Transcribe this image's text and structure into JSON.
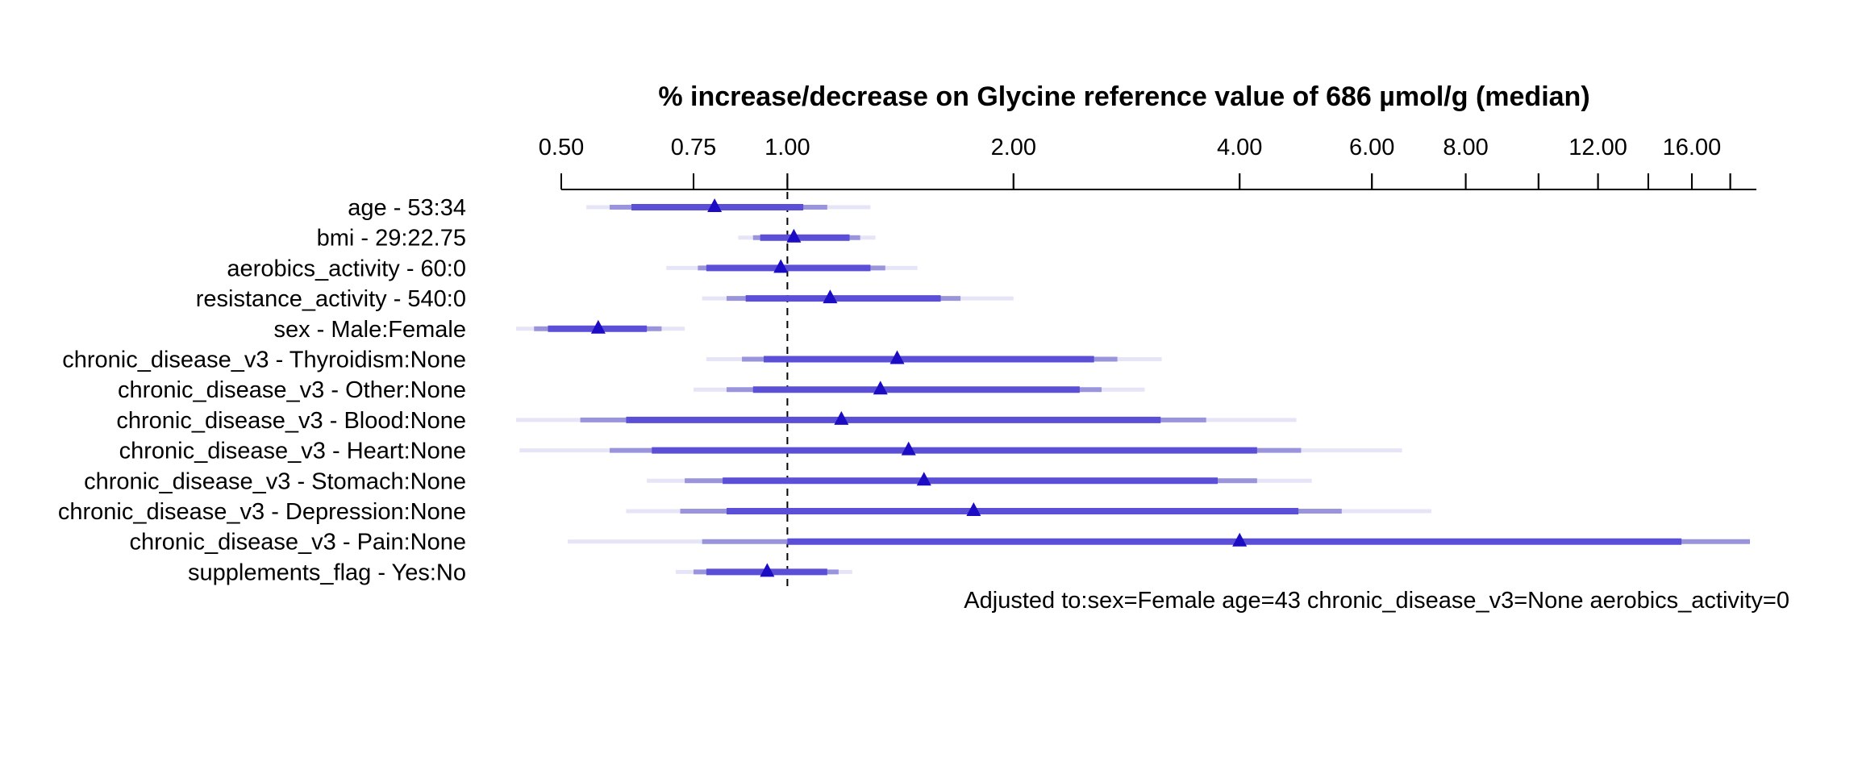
{
  "chart_data": {
    "type": "forest",
    "title": "% increase/decrease on Glycine reference value of 686 µmol/g (median)",
    "x_scale": "log",
    "xlim": [
      0.5,
      19.5
    ],
    "reference_line": 1.0,
    "tick_values": [
      0.5,
      0.75,
      1.0,
      2.0,
      4.0,
      6.0,
      8.0,
      10.0,
      12.0,
      14.0,
      16.0,
      18.0
    ],
    "tick_labels": [
      "0.50",
      "0.75",
      "1.00",
      "2.00",
      "4.00",
      "6.00",
      "8.00",
      "",
      "12.00",
      "",
      "16.00",
      ""
    ],
    "interval_levels": [
      "outer (light)",
      "middle",
      "inner (dark)"
    ],
    "colors": {
      "outer": "#e6e4f7",
      "middle": "#9a94dc",
      "inner": "#5a4fd6",
      "point": "#1c0cc4",
      "axis": "#000000"
    },
    "rows": [
      {
        "label": "age - 53:34",
        "estimate": 0.8,
        "inner": [
          0.62,
          1.05
        ],
        "middle": [
          0.58,
          1.13
        ],
        "outer": [
          0.54,
          1.29
        ]
      },
      {
        "label": "bmi - 29:22.75",
        "estimate": 1.02,
        "inner": [
          0.92,
          1.21
        ],
        "middle": [
          0.9,
          1.25
        ],
        "outer": [
          0.86,
          1.31
        ]
      },
      {
        "label": "aerobics_activity - 60:0",
        "estimate": 0.98,
        "inner": [
          0.78,
          1.29
        ],
        "middle": [
          0.76,
          1.35
        ],
        "outer": [
          0.69,
          1.49
        ]
      },
      {
        "label": "resistance_activity - 540:0",
        "estimate": 1.14,
        "inner": [
          0.88,
          1.6
        ],
        "middle": [
          0.83,
          1.7
        ],
        "outer": [
          0.77,
          2.0
        ]
      },
      {
        "label": "sex - Male:Female",
        "estimate": 0.56,
        "inner": [
          0.48,
          0.65
        ],
        "middle": [
          0.46,
          0.68
        ],
        "outer": [
          0.43,
          0.73
        ]
      },
      {
        "label": "chronic_disease_v3 - Thyroidism:None",
        "estimate": 1.4,
        "inner": [
          0.93,
          2.56
        ],
        "middle": [
          0.87,
          2.75
        ],
        "outer": [
          0.78,
          3.15
        ]
      },
      {
        "label": "chronic_disease_v3 - Other:None",
        "estimate": 1.33,
        "inner": [
          0.9,
          2.45
        ],
        "middle": [
          0.83,
          2.62
        ],
        "outer": [
          0.75,
          2.99
        ]
      },
      {
        "label": "chronic_disease_v3 - Blood:None",
        "estimate": 1.18,
        "inner": [
          0.61,
          3.14
        ],
        "middle": [
          0.53,
          3.61
        ],
        "outer": [
          0.41,
          4.76
        ]
      },
      {
        "label": "chronic_disease_v3 - Heart:None",
        "estimate": 1.45,
        "inner": [
          0.66,
          4.22
        ],
        "middle": [
          0.58,
          4.83
        ],
        "outer": [
          0.44,
          6.58
        ]
      },
      {
        "label": "chronic_disease_v3 - Stomach:None",
        "estimate": 1.52,
        "inner": [
          0.82,
          3.74
        ],
        "middle": [
          0.73,
          4.22
        ],
        "outer": [
          0.65,
          4.99
        ]
      },
      {
        "label": "chronic_disease_v3 - Depression:None",
        "estimate": 1.77,
        "inner": [
          0.83,
          4.79
        ],
        "middle": [
          0.72,
          5.47
        ],
        "outer": [
          0.61,
          7.2
        ]
      },
      {
        "label": "chronic_disease_v3 - Pain:None",
        "estimate": 4.0,
        "inner": [
          1.0,
          15.5
        ],
        "middle": [
          0.77,
          20.1
        ],
        "outer": [
          0.51,
          30.0
        ]
      },
      {
        "label": "supplements_flag - Yes:No",
        "estimate": 0.94,
        "inner": [
          0.78,
          1.13
        ],
        "middle": [
          0.75,
          1.17
        ],
        "outer": [
          0.71,
          1.22
        ]
      }
    ],
    "annotation": "Adjusted to:sex=Female age=43 chronic_disease_v3=None aerobics_activity=0"
  }
}
